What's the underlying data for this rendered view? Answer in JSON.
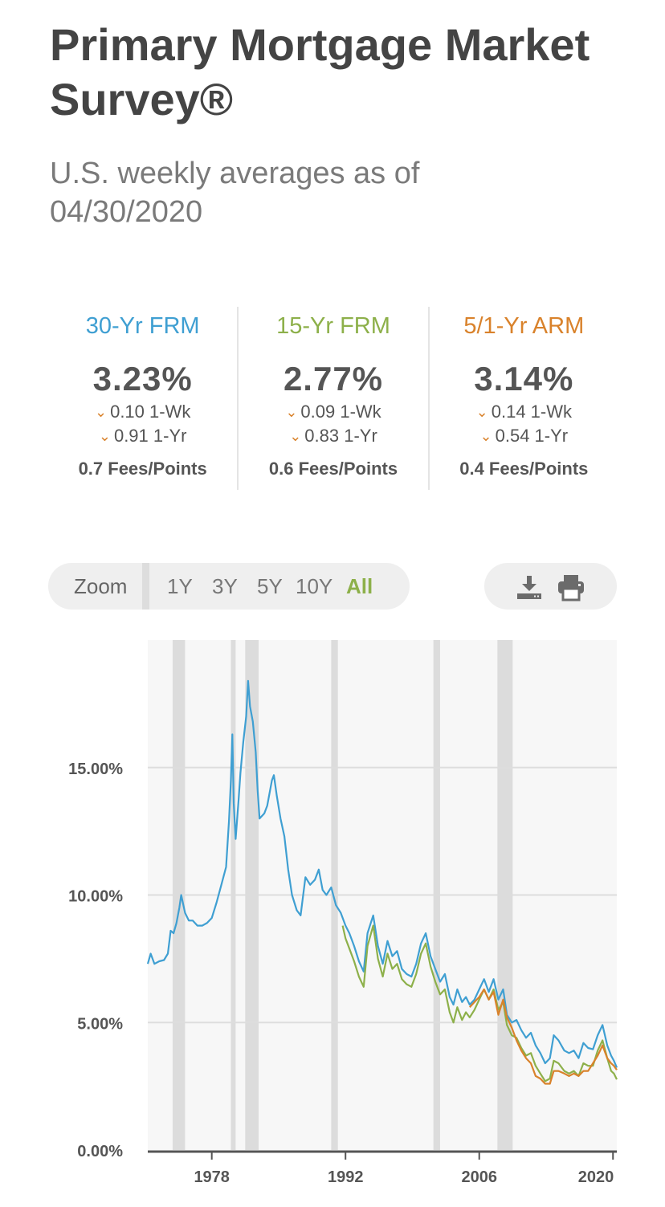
{
  "header": {
    "title": "Primary Mortgage Market Survey®",
    "subtitle": "U.S. weekly averages as of 04/30/2020"
  },
  "stats": [
    {
      "label": "30-Yr FRM",
      "color": "#3f9fd2",
      "value": "3.23%",
      "wk_change": "0.10 1-Wk",
      "yr_change": "0.91 1-Yr",
      "fees": "0.7 Fees/Points"
    },
    {
      "label": "15-Yr FRM",
      "color": "#8db04a",
      "value": "2.77%",
      "wk_change": "0.09 1-Wk",
      "yr_change": "0.83 1-Yr",
      "fees": "0.6 Fees/Points"
    },
    {
      "label": "5/1-Yr ARM",
      "color": "#d9822b",
      "value": "3.14%",
      "wk_change": "0.14 1-Wk",
      "yr_change": "0.54 1-Yr",
      "fees": "0.4 Fees/Points"
    }
  ],
  "zoom": {
    "label": "Zoom",
    "options": [
      "1Y",
      "3Y",
      "5Y",
      "10Y",
      "All"
    ],
    "selected": "All"
  },
  "toolbar": {
    "download_icon": "download-icon",
    "print_icon": "print-icon"
  },
  "chart_data": {
    "type": "line",
    "y_ticks": [
      "15.00%",
      "10.00%",
      "5.00%",
      "0.00%"
    ],
    "x_ticks": [
      "1978",
      "1992",
      "2006",
      "2020"
    ],
    "ylim": [
      0,
      20
    ],
    "xlim": [
      1971.3,
      2020.4
    ],
    "grid": true,
    "recession_bands": [
      [
        1973.9,
        1975.2
      ],
      [
        1980.0,
        1980.5
      ],
      [
        1981.5,
        1982.9
      ],
      [
        1990.5,
        1991.2
      ],
      [
        2001.2,
        2001.9
      ],
      [
        2007.9,
        2009.5
      ]
    ],
    "series": [
      {
        "name": "30-Yr FRM",
        "color": "#3f9fd2",
        "points": [
          [
            1971.3,
            7.3
          ],
          [
            1971.6,
            7.7
          ],
          [
            1972.0,
            7.3
          ],
          [
            1972.5,
            7.4
          ],
          [
            1973.0,
            7.45
          ],
          [
            1973.4,
            7.7
          ],
          [
            1973.7,
            8.6
          ],
          [
            1974.0,
            8.5
          ],
          [
            1974.3,
            8.9
          ],
          [
            1974.6,
            9.5
          ],
          [
            1974.8,
            10.0
          ],
          [
            1975.2,
            9.3
          ],
          [
            1975.6,
            9.0
          ],
          [
            1976.0,
            9.0
          ],
          [
            1976.5,
            8.8
          ],
          [
            1977.0,
            8.8
          ],
          [
            1977.5,
            8.9
          ],
          [
            1978.0,
            9.1
          ],
          [
            1978.5,
            9.7
          ],
          [
            1979.0,
            10.4
          ],
          [
            1979.5,
            11.1
          ],
          [
            1979.8,
            12.9
          ],
          [
            1980.0,
            14.5
          ],
          [
            1980.15,
            16.3
          ],
          [
            1980.3,
            13.6
          ],
          [
            1980.5,
            12.2
          ],
          [
            1980.8,
            13.7
          ],
          [
            1981.0,
            14.8
          ],
          [
            1981.3,
            16.0
          ],
          [
            1981.6,
            17.0
          ],
          [
            1981.8,
            18.4
          ],
          [
            1982.0,
            17.4
          ],
          [
            1982.3,
            16.8
          ],
          [
            1982.6,
            15.6
          ],
          [
            1982.8,
            14.1
          ],
          [
            1983.0,
            13.0
          ],
          [
            1983.5,
            13.2
          ],
          [
            1983.8,
            13.5
          ],
          [
            1984.3,
            14.5
          ],
          [
            1984.5,
            14.7
          ],
          [
            1984.8,
            13.9
          ],
          [
            1985.2,
            13.0
          ],
          [
            1985.6,
            12.3
          ],
          [
            1986.0,
            11.0
          ],
          [
            1986.4,
            10.0
          ],
          [
            1986.9,
            9.4
          ],
          [
            1987.3,
            9.2
          ],
          [
            1987.8,
            10.7
          ],
          [
            1988.3,
            10.4
          ],
          [
            1988.8,
            10.6
          ],
          [
            1989.2,
            11.0
          ],
          [
            1989.6,
            10.2
          ],
          [
            1990.0,
            10.0
          ],
          [
            1990.5,
            10.3
          ],
          [
            1991.0,
            9.6
          ],
          [
            1991.5,
            9.3
          ],
          [
            1992.0,
            8.8
          ],
          [
            1992.4,
            8.5
          ],
          [
            1992.9,
            8.0
          ],
          [
            1993.4,
            7.4
          ],
          [
            1993.9,
            7.0
          ],
          [
            1994.3,
            8.5
          ],
          [
            1994.9,
            9.2
          ],
          [
            1995.4,
            8.0
          ],
          [
            1995.9,
            7.3
          ],
          [
            1996.4,
            8.2
          ],
          [
            1996.9,
            7.6
          ],
          [
            1997.4,
            7.8
          ],
          [
            1997.9,
            7.1
          ],
          [
            1998.4,
            6.9
          ],
          [
            1998.9,
            6.8
          ],
          [
            1999.4,
            7.3
          ],
          [
            1999.9,
            8.1
          ],
          [
            2000.4,
            8.5
          ],
          [
            2000.9,
            7.6
          ],
          [
            2001.4,
            7.1
          ],
          [
            2001.9,
            6.6
          ],
          [
            2002.4,
            6.9
          ],
          [
            2002.9,
            6.0
          ],
          [
            2003.3,
            5.7
          ],
          [
            2003.7,
            6.3
          ],
          [
            2004.2,
            5.8
          ],
          [
            2004.6,
            6.0
          ],
          [
            2005.0,
            5.7
          ],
          [
            2005.5,
            5.9
          ],
          [
            2006.0,
            6.3
          ],
          [
            2006.5,
            6.7
          ],
          [
            2007.0,
            6.2
          ],
          [
            2007.5,
            6.7
          ],
          [
            2008.0,
            5.9
          ],
          [
            2008.5,
            6.3
          ],
          [
            2008.9,
            5.3
          ],
          [
            2009.4,
            5.0
          ],
          [
            2009.9,
            5.1
          ],
          [
            2010.4,
            4.7
          ],
          [
            2010.9,
            4.4
          ],
          [
            2011.4,
            4.6
          ],
          [
            2011.9,
            4.1
          ],
          [
            2012.4,
            3.8
          ],
          [
            2012.9,
            3.4
          ],
          [
            2013.4,
            3.6
          ],
          [
            2013.8,
            4.5
          ],
          [
            2014.3,
            4.3
          ],
          [
            2014.9,
            3.9
          ],
          [
            2015.4,
            3.8
          ],
          [
            2015.9,
            3.9
          ],
          [
            2016.4,
            3.6
          ],
          [
            2016.9,
            4.2
          ],
          [
            2017.4,
            4.0
          ],
          [
            2017.9,
            3.95
          ],
          [
            2018.4,
            4.5
          ],
          [
            2018.9,
            4.9
          ],
          [
            2019.4,
            4.1
          ],
          [
            2019.8,
            3.7
          ],
          [
            2020.1,
            3.5
          ],
          [
            2020.4,
            3.23
          ]
        ]
      },
      {
        "name": "15-Yr FRM",
        "color": "#8db04a",
        "points": [
          [
            1991.7,
            8.8
          ],
          [
            1992.0,
            8.3
          ],
          [
            1992.4,
            7.9
          ],
          [
            1992.9,
            7.4
          ],
          [
            1993.4,
            6.8
          ],
          [
            1993.9,
            6.4
          ],
          [
            1994.3,
            8.0
          ],
          [
            1994.9,
            8.8
          ],
          [
            1995.4,
            7.5
          ],
          [
            1995.9,
            6.8
          ],
          [
            1996.4,
            7.7
          ],
          [
            1996.9,
            7.1
          ],
          [
            1997.4,
            7.3
          ],
          [
            1997.9,
            6.7
          ],
          [
            1998.4,
            6.5
          ],
          [
            1998.9,
            6.4
          ],
          [
            1999.4,
            6.9
          ],
          [
            1999.9,
            7.7
          ],
          [
            2000.4,
            8.1
          ],
          [
            2000.9,
            7.2
          ],
          [
            2001.4,
            6.6
          ],
          [
            2001.9,
            6.1
          ],
          [
            2002.4,
            6.3
          ],
          [
            2002.9,
            5.4
          ],
          [
            2003.3,
            5.0
          ],
          [
            2003.7,
            5.6
          ],
          [
            2004.2,
            5.1
          ],
          [
            2004.6,
            5.4
          ],
          [
            2005.0,
            5.2
          ],
          [
            2005.5,
            5.5
          ],
          [
            2006.0,
            5.9
          ],
          [
            2006.5,
            6.3
          ],
          [
            2007.0,
            5.9
          ],
          [
            2007.5,
            6.3
          ],
          [
            2008.0,
            5.5
          ],
          [
            2008.5,
            5.8
          ],
          [
            2008.9,
            4.9
          ],
          [
            2009.4,
            4.5
          ],
          [
            2009.9,
            4.4
          ],
          [
            2010.4,
            4.0
          ],
          [
            2010.9,
            3.7
          ],
          [
            2011.4,
            3.8
          ],
          [
            2011.9,
            3.3
          ],
          [
            2012.4,
            3.0
          ],
          [
            2012.9,
            2.7
          ],
          [
            2013.4,
            2.8
          ],
          [
            2013.8,
            3.5
          ],
          [
            2014.3,
            3.4
          ],
          [
            2014.9,
            3.1
          ],
          [
            2015.4,
            3.0
          ],
          [
            2015.9,
            3.1
          ],
          [
            2016.4,
            2.9
          ],
          [
            2016.9,
            3.4
          ],
          [
            2017.4,
            3.3
          ],
          [
            2017.9,
            3.3
          ],
          [
            2018.4,
            3.9
          ],
          [
            2018.9,
            4.3
          ],
          [
            2019.4,
            3.6
          ],
          [
            2019.8,
            3.1
          ],
          [
            2020.1,
            3.0
          ],
          [
            2020.4,
            2.77
          ]
        ]
      },
      {
        "name": "5/1-Yr ARM",
        "color": "#d9822b",
        "points": [
          [
            2005.0,
            5.6
          ],
          [
            2005.5,
            5.8
          ],
          [
            2006.0,
            6.0
          ],
          [
            2006.5,
            6.3
          ],
          [
            2007.0,
            5.9
          ],
          [
            2007.5,
            6.2
          ],
          [
            2008.0,
            5.3
          ],
          [
            2008.5,
            5.9
          ],
          [
            2008.9,
            5.2
          ],
          [
            2009.4,
            4.8
          ],
          [
            2009.9,
            4.3
          ],
          [
            2010.4,
            3.9
          ],
          [
            2010.9,
            3.6
          ],
          [
            2011.4,
            3.4
          ],
          [
            2011.9,
            2.9
          ],
          [
            2012.4,
            2.8
          ],
          [
            2012.9,
            2.6
          ],
          [
            2013.4,
            2.6
          ],
          [
            2013.8,
            3.1
          ],
          [
            2014.3,
            3.1
          ],
          [
            2014.9,
            3.0
          ],
          [
            2015.4,
            2.9
          ],
          [
            2015.9,
            3.0
          ],
          [
            2016.4,
            2.9
          ],
          [
            2016.9,
            3.1
          ],
          [
            2017.4,
            3.1
          ],
          [
            2017.9,
            3.4
          ],
          [
            2018.4,
            3.7
          ],
          [
            2018.9,
            4.1
          ],
          [
            2019.4,
            3.6
          ],
          [
            2019.8,
            3.4
          ],
          [
            2020.1,
            3.3
          ],
          [
            2020.4,
            3.14
          ]
        ]
      }
    ]
  }
}
